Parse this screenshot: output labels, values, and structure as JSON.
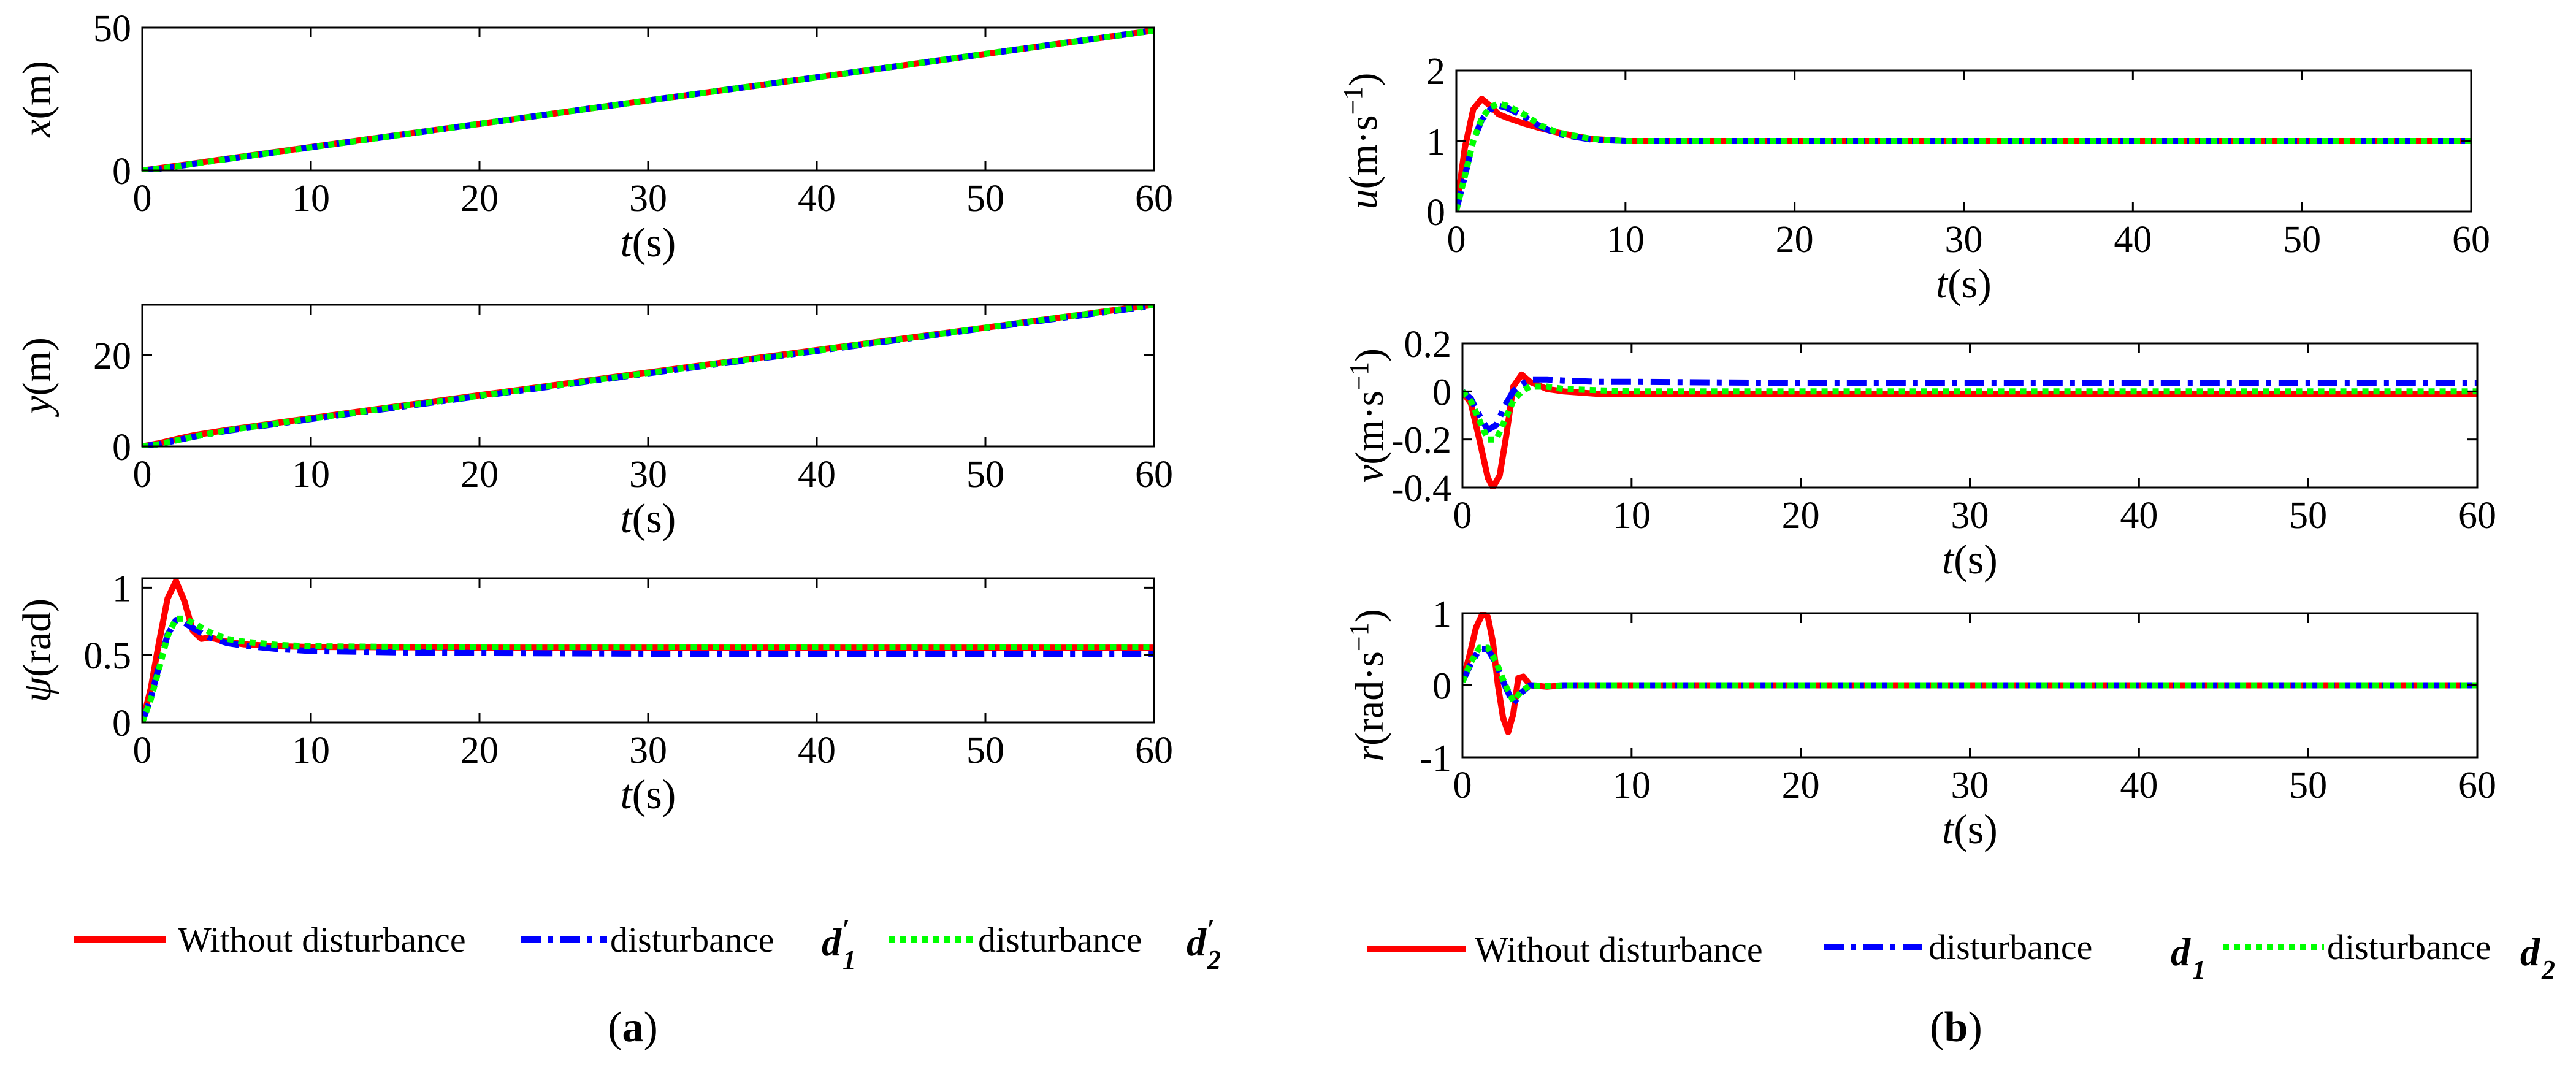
{
  "colors": {
    "without": "#FF0000",
    "d1": "#0000FF",
    "d2": "#00FF00",
    "axis": "#000000"
  },
  "chart_data": [
    {
      "panel": "a",
      "type": "line",
      "title": "",
      "xlabel_var": "t",
      "xlabel_unit": "(s)",
      "ylabel_var": "x",
      "ylabel_unit": "(m)",
      "xlim": [
        0,
        60
      ],
      "ylim": [
        0,
        50
      ],
      "xticks": [
        0,
        10,
        20,
        30,
        40,
        50,
        60
      ],
      "yticks": [
        0,
        50
      ],
      "series": [
        {
          "name": "Without disturbance",
          "style": "solid",
          "x": [
            0,
            1,
            2,
            3,
            5,
            10,
            20,
            30,
            40,
            50,
            60
          ],
          "y": [
            0,
            0.8,
            1.6,
            2.4,
            4.1,
            8.2,
            16.3,
            24.5,
            32.6,
            40.8,
            49
          ]
        },
        {
          "name": "disturbance d'1",
          "style": "dashdot",
          "x": [
            0,
            1,
            2,
            3,
            5,
            10,
            20,
            30,
            40,
            50,
            60
          ],
          "y": [
            0,
            0.6,
            1.4,
            2.3,
            4.0,
            8.1,
            16.3,
            24.5,
            32.6,
            40.8,
            49
          ]
        },
        {
          "name": "disturbance d'2",
          "style": "dotted",
          "x": [
            0,
            1,
            2,
            3,
            5,
            10,
            20,
            30,
            40,
            50,
            60
          ],
          "y": [
            0,
            0.6,
            1.4,
            2.3,
            4.0,
            8.1,
            16.3,
            24.5,
            32.6,
            40.8,
            49
          ]
        }
      ]
    },
    {
      "panel": "a",
      "type": "line",
      "title": "",
      "xlabel_var": "t",
      "xlabel_unit": "(s)",
      "ylabel_var": "y",
      "ylabel_unit": "(m)",
      "xlim": [
        0,
        60
      ],
      "ylim": [
        0,
        31
      ],
      "xticks": [
        0,
        10,
        20,
        30,
        40,
        50,
        60
      ],
      "yticks": [
        0,
        20
      ],
      "series": [
        {
          "name": "Without disturbance",
          "style": "solid",
          "x": [
            0,
            1,
            2,
            3,
            5,
            10,
            20,
            30,
            40,
            50,
            60
          ],
          "y": [
            0,
            0.7,
            1.6,
            2.4,
            3.6,
            6.2,
            11.2,
            16.2,
            21.1,
            26.0,
            31
          ]
        },
        {
          "name": "disturbance d'1",
          "style": "dashdot",
          "x": [
            0,
            1,
            2,
            3,
            5,
            10,
            20,
            30,
            40,
            50,
            60
          ],
          "y": [
            0,
            0.5,
            1.3,
            2.1,
            3.4,
            6.0,
            11.0,
            16.0,
            20.9,
            25.9,
            30.8
          ]
        },
        {
          "name": "disturbance d'2",
          "style": "dotted",
          "x": [
            0,
            1,
            2,
            3,
            5,
            10,
            20,
            30,
            40,
            50,
            60
          ],
          "y": [
            0,
            0.5,
            1.3,
            2.1,
            3.5,
            6.1,
            11.1,
            16.1,
            21.0,
            26.0,
            31
          ]
        }
      ]
    },
    {
      "panel": "a",
      "type": "line",
      "title": "",
      "xlabel_var": "t",
      "xlabel_unit": "(s)",
      "ylabel_var": "ψ",
      "ylabel_unit": "(rad)",
      "xlim": [
        0,
        60
      ],
      "ylim": [
        0,
        1.07
      ],
      "xticks": [
        0,
        10,
        20,
        30,
        40,
        50,
        60
      ],
      "yticks": [
        0,
        0.5,
        1
      ],
      "series": [
        {
          "name": "Without disturbance",
          "style": "solid",
          "x": [
            0,
            0.5,
            1,
            1.5,
            2,
            2.5,
            3,
            3.5,
            4,
            5,
            6,
            8,
            10,
            20,
            30,
            40,
            50,
            60
          ],
          "y": [
            0,
            0.25,
            0.6,
            0.92,
            1.05,
            0.9,
            0.68,
            0.62,
            0.63,
            0.6,
            0.58,
            0.565,
            0.56,
            0.555,
            0.555,
            0.555,
            0.555,
            0.555
          ]
        },
        {
          "name": "disturbance d'1",
          "style": "dashdot",
          "x": [
            0,
            0.5,
            1,
            1.5,
            2,
            2.5,
            3,
            4,
            5,
            6,
            8,
            10,
            15,
            20,
            30,
            40,
            50,
            60
          ],
          "y": [
            0,
            0.18,
            0.42,
            0.65,
            0.76,
            0.74,
            0.7,
            0.63,
            0.59,
            0.57,
            0.545,
            0.53,
            0.52,
            0.515,
            0.51,
            0.51,
            0.51,
            0.51
          ]
        },
        {
          "name": "disturbance d'2",
          "style": "dotted",
          "x": [
            0,
            0.5,
            1,
            1.5,
            2,
            2.5,
            3,
            4,
            5,
            6,
            8,
            10,
            15,
            20,
            30,
            40,
            50,
            60
          ],
          "y": [
            0,
            0.17,
            0.4,
            0.64,
            0.77,
            0.77,
            0.74,
            0.67,
            0.62,
            0.6,
            0.575,
            0.565,
            0.56,
            0.56,
            0.56,
            0.56,
            0.56,
            0.56
          ]
        }
      ]
    },
    {
      "panel": "b",
      "type": "line",
      "title": "",
      "xlabel_var": "t",
      "xlabel_unit": "(s)",
      "ylabel_var": "u",
      "ylabel_unit": "(m·s",
      "ylabel_sup": "−1",
      "ylabel_close": ")",
      "xlim": [
        0,
        60
      ],
      "ylim": [
        0,
        2
      ],
      "xticks": [
        0,
        10,
        20,
        30,
        40,
        50,
        60
      ],
      "yticks": [
        0,
        1,
        2
      ],
      "series": [
        {
          "name": "Without disturbance",
          "style": "solid",
          "x": [
            0,
            0.5,
            1,
            1.5,
            2,
            2.5,
            3,
            4,
            5,
            6,
            7,
            8,
            10,
            20,
            30,
            40,
            50,
            60
          ],
          "y": [
            0.02,
            0.9,
            1.45,
            1.6,
            1.5,
            1.38,
            1.33,
            1.25,
            1.18,
            1.12,
            1.07,
            1.03,
            1.0,
            1.0,
            1.0,
            1.0,
            1.0,
            1.0
          ]
        },
        {
          "name": "disturbance d1",
          "style": "dashdot",
          "x": [
            0,
            0.5,
            1,
            1.5,
            2,
            2.5,
            3,
            4,
            5,
            6,
            8,
            10,
            20,
            30,
            40,
            50,
            60
          ],
          "y": [
            0.02,
            0.5,
            1.0,
            1.3,
            1.45,
            1.5,
            1.47,
            1.35,
            1.2,
            1.1,
            1.02,
            1.0,
            1.0,
            1.0,
            1.0,
            1.0,
            1.0
          ]
        },
        {
          "name": "disturbance d2",
          "style": "dotted",
          "x": [
            0,
            0.5,
            1,
            1.5,
            2,
            2.5,
            3,
            4,
            5,
            6,
            8,
            10,
            20,
            30,
            40,
            50,
            60
          ],
          "y": [
            0.02,
            0.5,
            1.0,
            1.32,
            1.48,
            1.53,
            1.5,
            1.38,
            1.22,
            1.12,
            1.03,
            1.0,
            1.0,
            1.0,
            1.0,
            1.0,
            1.0
          ]
        }
      ]
    },
    {
      "panel": "b",
      "type": "line",
      "title": "",
      "xlabel_var": "t",
      "xlabel_unit": "(s)",
      "ylabel_var": "v",
      "ylabel_unit": "(m·s",
      "ylabel_sup": "−1",
      "ylabel_close": ")",
      "xlim": [
        0,
        60
      ],
      "ylim": [
        -0.4,
        0.2
      ],
      "xticks": [
        0,
        10,
        20,
        30,
        40,
        50,
        60
      ],
      "yticks": [
        -0.4,
        -0.2,
        0,
        0.2
      ],
      "ytick_labels": [
        "-0.4",
        "-0.2",
        "0",
        "0.2"
      ],
      "series": [
        {
          "name": "Without disturbance",
          "style": "solid",
          "x": [
            0,
            0.5,
            1,
            1.5,
            1.8,
            2.2,
            2.6,
            3,
            3.5,
            4,
            5,
            6,
            8,
            10,
            20,
            30,
            40,
            50,
            60
          ],
          "y": [
            0,
            -0.05,
            -0.2,
            -0.36,
            -0.4,
            -0.35,
            -0.18,
            0.02,
            0.07,
            0.04,
            0.01,
            0.0,
            -0.01,
            -0.01,
            -0.01,
            -0.01,
            -0.01,
            -0.01,
            -0.01
          ]
        },
        {
          "name": "disturbance d1",
          "style": "dashdot",
          "x": [
            0,
            0.5,
            1,
            1.5,
            2,
            2.5,
            3,
            3.5,
            4,
            5,
            6,
            8,
            10,
            20,
            30,
            40,
            50,
            60
          ],
          "y": [
            0,
            -0.03,
            -0.1,
            -0.16,
            -0.14,
            -0.06,
            0.0,
            0.03,
            0.05,
            0.05,
            0.045,
            0.04,
            0.04,
            0.035,
            0.035,
            0.035,
            0.035,
            0.035
          ]
        },
        {
          "name": "disturbance d2",
          "style": "dotted",
          "x": [
            0,
            0.5,
            1,
            1.5,
            2,
            2.5,
            3,
            3.5,
            4,
            5,
            6,
            8,
            10,
            20,
            30,
            40,
            50,
            60
          ],
          "y": [
            0,
            -0.04,
            -0.12,
            -0.2,
            -0.2,
            -0.12,
            -0.04,
            0.0,
            0.02,
            0.02,
            0.01,
            0.005,
            0.0,
            0.0,
            0.0,
            0.0,
            0.0,
            0.0
          ]
        }
      ]
    },
    {
      "panel": "b",
      "type": "line",
      "title": "",
      "xlabel_var": "t",
      "xlabel_unit": "(s)",
      "ylabel_var": "r",
      "ylabel_unit": "(rad·s",
      "ylabel_sup": "−1",
      "ylabel_close": ")",
      "xlim": [
        0,
        60
      ],
      "ylim": [
        -1,
        1
      ],
      "xticks": [
        0,
        10,
        20,
        30,
        40,
        50,
        60
      ],
      "yticks": [
        -1,
        0,
        1
      ],
      "series": [
        {
          "name": "Without disturbance",
          "style": "solid",
          "x": [
            0,
            0.4,
            0.8,
            1.2,
            1.5,
            1.8,
            2.1,
            2.4,
            2.7,
            3.0,
            3.3,
            3.6,
            4,
            5,
            6,
            8,
            10,
            20,
            30,
            40,
            50,
            60
          ],
          "y": [
            0.05,
            0.4,
            0.8,
            1.0,
            0.95,
            0.6,
            0.0,
            -0.45,
            -0.65,
            -0.4,
            0.1,
            0.12,
            0.0,
            -0.02,
            0.0,
            0.0,
            0.0,
            0.0,
            0.0,
            0.0,
            0.0,
            0.0
          ]
        },
        {
          "name": "disturbance d1",
          "style": "dashdot",
          "x": [
            0,
            0.5,
            1,
            1.5,
            2,
            2.5,
            3,
            3.5,
            4,
            5,
            6,
            8,
            10,
            20,
            30,
            40,
            50,
            60
          ],
          "y": [
            0.05,
            0.3,
            0.5,
            0.5,
            0.3,
            0.0,
            -0.25,
            -0.1,
            0.0,
            -0.01,
            0.0,
            0.0,
            0.0,
            0.0,
            0.0,
            0.0,
            0.0,
            0.0
          ]
        },
        {
          "name": "disturbance d2",
          "style": "dotted",
          "x": [
            0,
            0.5,
            1,
            1.5,
            2,
            2.5,
            3,
            3.5,
            4,
            5,
            6,
            8,
            10,
            20,
            30,
            40,
            50,
            60
          ],
          "y": [
            0.05,
            0.32,
            0.52,
            0.52,
            0.32,
            0.02,
            -0.22,
            -0.08,
            0.0,
            -0.01,
            0.0,
            0.0,
            0.0,
            0.0,
            0.0,
            0.0,
            0.0,
            0.0
          ]
        }
      ]
    }
  ],
  "legend_a": {
    "without_label": "Without disturbance",
    "d1_label": "disturbance",
    "d1_symbol": "d",
    "d1_sub": "1",
    "d1_prime": "′",
    "d2_label": "disturbance",
    "d2_symbol": "d",
    "d2_sub": "2",
    "d2_prime": "′"
  },
  "legend_b": {
    "without_label": "Without disturbance",
    "d1_label": "disturbance",
    "d1_symbol": "d",
    "d1_sub": "1",
    "d2_label": "disturbance",
    "d2_symbol": "d",
    "d2_sub": "2"
  },
  "captions": {
    "a_open": "(",
    "a_letter": "a",
    "a_close": ")",
    "b_open": "(",
    "b_letter": "b",
    "b_close": ")"
  }
}
